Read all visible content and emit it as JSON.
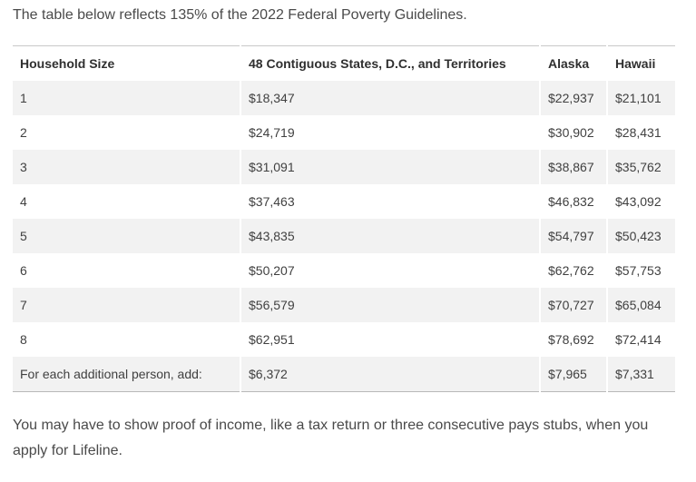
{
  "intro_text": "The table below reflects 135% of the 2022 Federal Poverty Guidelines.",
  "table": {
    "headers": [
      "Household Size",
      "48 Contiguous States, D.C., and Territories",
      "Alaska",
      "Hawaii"
    ],
    "rows": [
      [
        "1",
        "$18,347",
        "$22,937",
        "$21,101"
      ],
      [
        "2",
        "$24,719",
        "$30,902",
        "$28,431"
      ],
      [
        "3",
        "$31,091",
        "$38,867",
        "$35,762"
      ],
      [
        "4",
        "$37,463",
        "$46,832",
        "$43,092"
      ],
      [
        "5",
        "$43,835",
        "$54,797",
        "$50,423"
      ],
      [
        "6",
        "$50,207",
        "$62,762",
        "$57,753"
      ],
      [
        "7",
        "$56,579",
        "$70,727",
        "$65,084"
      ],
      [
        "8",
        "$62,951",
        "$78,692",
        "$72,414"
      ],
      [
        "For each additional person, add:",
        "$6,372",
        "$7,965",
        "$7,331"
      ]
    ]
  },
  "outro_text": "You may have to show proof of income, like a tax return or three consecutive pays stubs, when you apply for Lifeline.",
  "colors": {
    "shaded_row": "#f2f2f2",
    "text": "#404040",
    "rule": "#c8c8c8"
  }
}
